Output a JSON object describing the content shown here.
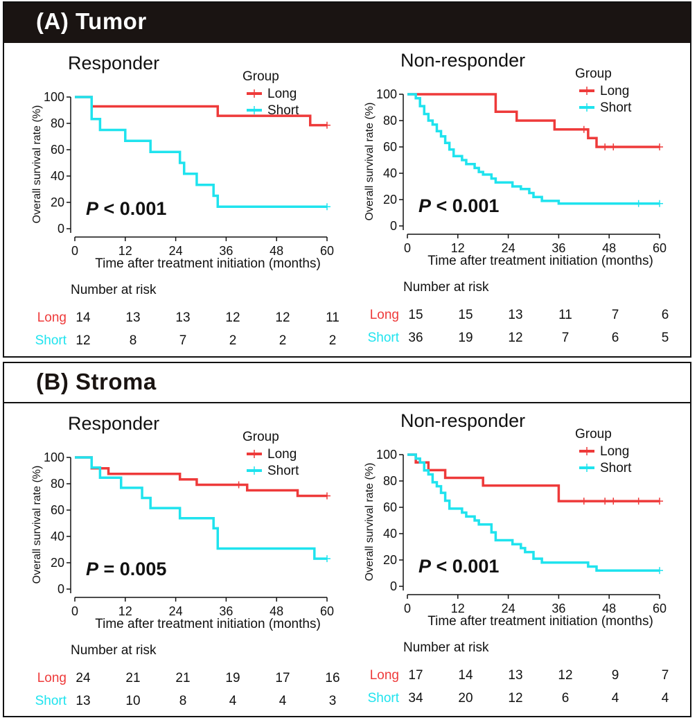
{
  "sections": [
    {
      "title": "(A)  Tumor",
      "chart_data": [
        {
          "type": "line",
          "subtype": "kaplan-meier",
          "title": "Responder",
          "xlabel": "Time after treatment initiation (months)",
          "ylabel": "Overall survival rate (%)",
          "xlim": [
            0,
            60
          ],
          "ylim": [
            0,
            100
          ],
          "xticks": [
            0,
            12,
            24,
            36,
            48,
            60
          ],
          "yticks": [
            0,
            20,
            40,
            60,
            80,
            100
          ],
          "legend_title": "Group",
          "legend_position": "top-right",
          "pvalue": {
            "label": "P",
            "text": "< 0.001"
          },
          "series": [
            {
              "name": "Long",
              "color": "#ee3a3a",
              "steps": [
                [
                  0,
                  100
                ],
                [
                  4,
                  92.9
                ],
                [
                  34,
                  85.7
                ],
                [
                  56,
                  78.6
                ],
                [
                  60,
                  78.6
                ]
              ],
              "censors": [
                [
                  60,
                  78.6
                ]
              ]
            },
            {
              "name": "Short",
              "color": "#1fe3ee",
              "steps": [
                [
                  0,
                  100
                ],
                [
                  4,
                  83.3
                ],
                [
                  6,
                  75
                ],
                [
                  12,
                  66.7
                ],
                [
                  18,
                  58.3
                ],
                [
                  25,
                  50
                ],
                [
                  26,
                  41.7
                ],
                [
                  29,
                  33.3
                ],
                [
                  33,
                  25
                ],
                [
                  34,
                  16.7
                ],
                [
                  60,
                  16.7
                ]
              ],
              "censors": [
                [
                  60,
                  16.7
                ]
              ]
            }
          ],
          "risk_table": {
            "title": "Number at risk",
            "rows": [
              {
                "label": "Long",
                "color": "#ee3a3a",
                "values": [
                  14,
                  13,
                  13,
                  12,
                  12,
                  11
                ]
              },
              {
                "label": "Short",
                "color": "#1fe3ee",
                "values": [
                  12,
                  8,
                  7,
                  2,
                  2,
                  2
                ]
              }
            ]
          }
        },
        {
          "type": "line",
          "subtype": "kaplan-meier",
          "title": "Non-responder",
          "xlabel": "Time after treatment initiation (months)",
          "ylabel": "Overall survival rate (%)",
          "xlim": [
            0,
            60
          ],
          "ylim": [
            0,
            100
          ],
          "xticks": [
            0,
            12,
            24,
            36,
            48,
            60
          ],
          "yticks": [
            0,
            20,
            40,
            60,
            80,
            100
          ],
          "legend_title": "Group",
          "legend_position": "top-right",
          "pvalue": {
            "label": "P",
            "text": "< 0.001"
          },
          "series": [
            {
              "name": "Long",
              "color": "#ee3a3a",
              "steps": [
                [
                  0,
                  100
                ],
                [
                  21,
                  86.7
                ],
                [
                  26,
                  80
                ],
                [
                  35,
                  73.3
                ],
                [
                  43,
                  66.7
                ],
                [
                  45,
                  60
                ],
                [
                  60,
                  60
                ]
              ],
              "censors": [
                [
                  42,
                  73.3
                ],
                [
                  47,
                  60
                ],
                [
                  49,
                  60
                ],
                [
                  60,
                  60
                ]
              ]
            },
            {
              "name": "Short",
              "color": "#1fe3ee",
              "steps": [
                [
                  0,
                  100
                ],
                [
                  2,
                  97
                ],
                [
                  3,
                  91
                ],
                [
                  4,
                  85
                ],
                [
                  5,
                  80
                ],
                [
                  6,
                  77
                ],
                [
                  7,
                  72
                ],
                [
                  8,
                  68
                ],
                [
                  9,
                  63
                ],
                [
                  10,
                  58
                ],
                [
                  11,
                  53
                ],
                [
                  13,
                  50
                ],
                [
                  14,
                  47
                ],
                [
                  16,
                  44
                ],
                [
                  17,
                  41
                ],
                [
                  18,
                  39
                ],
                [
                  20,
                  36
                ],
                [
                  21,
                  33
                ],
                [
                  25,
                  30
                ],
                [
                  27,
                  28
                ],
                [
                  29,
                  25
                ],
                [
                  30,
                  22
                ],
                [
                  32,
                  19
                ],
                [
                  36,
                  17
                ],
                [
                  60,
                  17
                ]
              ],
              "censors": [
                [
                  55,
                  17
                ],
                [
                  60,
                  17
                ]
              ]
            }
          ],
          "risk_table": {
            "title": "Number at risk",
            "rows": [
              {
                "label": "Long",
                "color": "#ee3a3a",
                "values": [
                  15,
                  15,
                  13,
                  11,
                  7,
                  6
                ]
              },
              {
                "label": "Short",
                "color": "#1fe3ee",
                "values": [
                  36,
                  19,
                  12,
                  7,
                  6,
                  5
                ]
              }
            ]
          }
        }
      ]
    },
    {
      "title": "(B)  Stroma",
      "chart_data": [
        {
          "type": "line",
          "subtype": "kaplan-meier",
          "title": "Responder",
          "xlabel": "Time after treatment initiation (months)",
          "ylabel": "Overall survival rate (%)",
          "xlim": [
            0,
            60
          ],
          "ylim": [
            0,
            100
          ],
          "xticks": [
            0,
            12,
            24,
            36,
            48,
            60
          ],
          "yticks": [
            0,
            20,
            40,
            60,
            80,
            100
          ],
          "legend_title": "Group",
          "legend_position": "top-right",
          "pvalue": {
            "label": "P",
            "text": "= 0.005"
          },
          "series": [
            {
              "name": "Long",
              "color": "#ee3a3a",
              "steps": [
                [
                  0,
                  100
                ],
                [
                  4,
                  91.7
                ],
                [
                  8,
                  87.5
                ],
                [
                  25,
                  83.3
                ],
                [
                  29,
                  79.2
                ],
                [
                  41,
                  75
                ],
                [
                  53,
                  70.8
                ],
                [
                  60,
                  70.8
                ]
              ],
              "censors": [
                [
                  39,
                  79.2
                ],
                [
                  60,
                  70.8
                ]
              ]
            },
            {
              "name": "Short",
              "color": "#1fe3ee",
              "steps": [
                [
                  0,
                  100
                ],
                [
                  4,
                  92.3
                ],
                [
                  6,
                  84.6
                ],
                [
                  11,
                  76.9
                ],
                [
                  16,
                  69.2
                ],
                [
                  18,
                  61.5
                ],
                [
                  25,
                  53.8
                ],
                [
                  33,
                  46.2
                ],
                [
                  34,
                  30.8
                ],
                [
                  57,
                  23.1
                ],
                [
                  60,
                  23.1
                ]
              ],
              "censors": [
                [
                  60,
                  23.1
                ]
              ]
            }
          ],
          "risk_table": {
            "title": "Number at risk",
            "rows": [
              {
                "label": "Long",
                "color": "#ee3a3a",
                "values": [
                  24,
                  21,
                  21,
                  19,
                  17,
                  16
                ]
              },
              {
                "label": "Short",
                "color": "#1fe3ee",
                "values": [
                  13,
                  10,
                  8,
                  4,
                  4,
                  3
                ]
              }
            ]
          }
        },
        {
          "type": "line",
          "subtype": "kaplan-meier",
          "title": "Non-responder",
          "xlabel": "Time after treatment initiation (months)",
          "ylabel": "Overall survival rate (%)",
          "xlim": [
            0,
            60
          ],
          "ylim": [
            0,
            100
          ],
          "xticks": [
            0,
            12,
            24,
            36,
            48,
            60
          ],
          "yticks": [
            0,
            20,
            40,
            60,
            80,
            100
          ],
          "legend_title": "Group",
          "legend_position": "top-right",
          "pvalue": {
            "label": "P",
            "text": "< 0.001"
          },
          "series": [
            {
              "name": "Long",
              "color": "#ee3a3a",
              "steps": [
                [
                  0,
                  100
                ],
                [
                  2,
                  94.1
                ],
                [
                  5,
                  88.2
                ],
                [
                  9,
                  82.4
                ],
                [
                  18,
                  76.5
                ],
                [
                  36,
                  64.7
                ],
                [
                  60,
                  64.7
                ]
              ],
              "censors": [
                [
                  42,
                  64.7
                ],
                [
                  47,
                  64.7
                ],
                [
                  49,
                  64.7
                ],
                [
                  55,
                  64.7
                ],
                [
                  60,
                  64.7
                ]
              ]
            },
            {
              "name": "Short",
              "color": "#1fe3ee",
              "steps": [
                [
                  0,
                  100
                ],
                [
                  2,
                  97
                ],
                [
                  3,
                  94
                ],
                [
                  4,
                  88
                ],
                [
                  5,
                  85
                ],
                [
                  6,
                  79
                ],
                [
                  7,
                  76
                ],
                [
                  8,
                  71
                ],
                [
                  9,
                  65
                ],
                [
                  10,
                  59
                ],
                [
                  13,
                  56
                ],
                [
                  14,
                  53
                ],
                [
                  16,
                  50
                ],
                [
                  17,
                  47
                ],
                [
                  20,
                  41
                ],
                [
                  21,
                  35
                ],
                [
                  25,
                  32
                ],
                [
                  27,
                  29
                ],
                [
                  28,
                  26
                ],
                [
                  30,
                  21
                ],
                [
                  32,
                  18
                ],
                [
                  43,
                  15
                ],
                [
                  45,
                  12
                ],
                [
                  60,
                  12
                ]
              ],
              "censors": [
                [
                  60,
                  12
                ]
              ]
            }
          ],
          "risk_table": {
            "title": "Number at risk",
            "rows": [
              {
                "label": "Long",
                "color": "#ee3a3a",
                "values": [
                  17,
                  14,
                  13,
                  12,
                  9,
                  7
                ]
              },
              {
                "label": "Short",
                "color": "#1fe3ee",
                "values": [
                  34,
                  20,
                  12,
                  6,
                  4,
                  4
                ]
              }
            ]
          }
        }
      ]
    }
  ]
}
